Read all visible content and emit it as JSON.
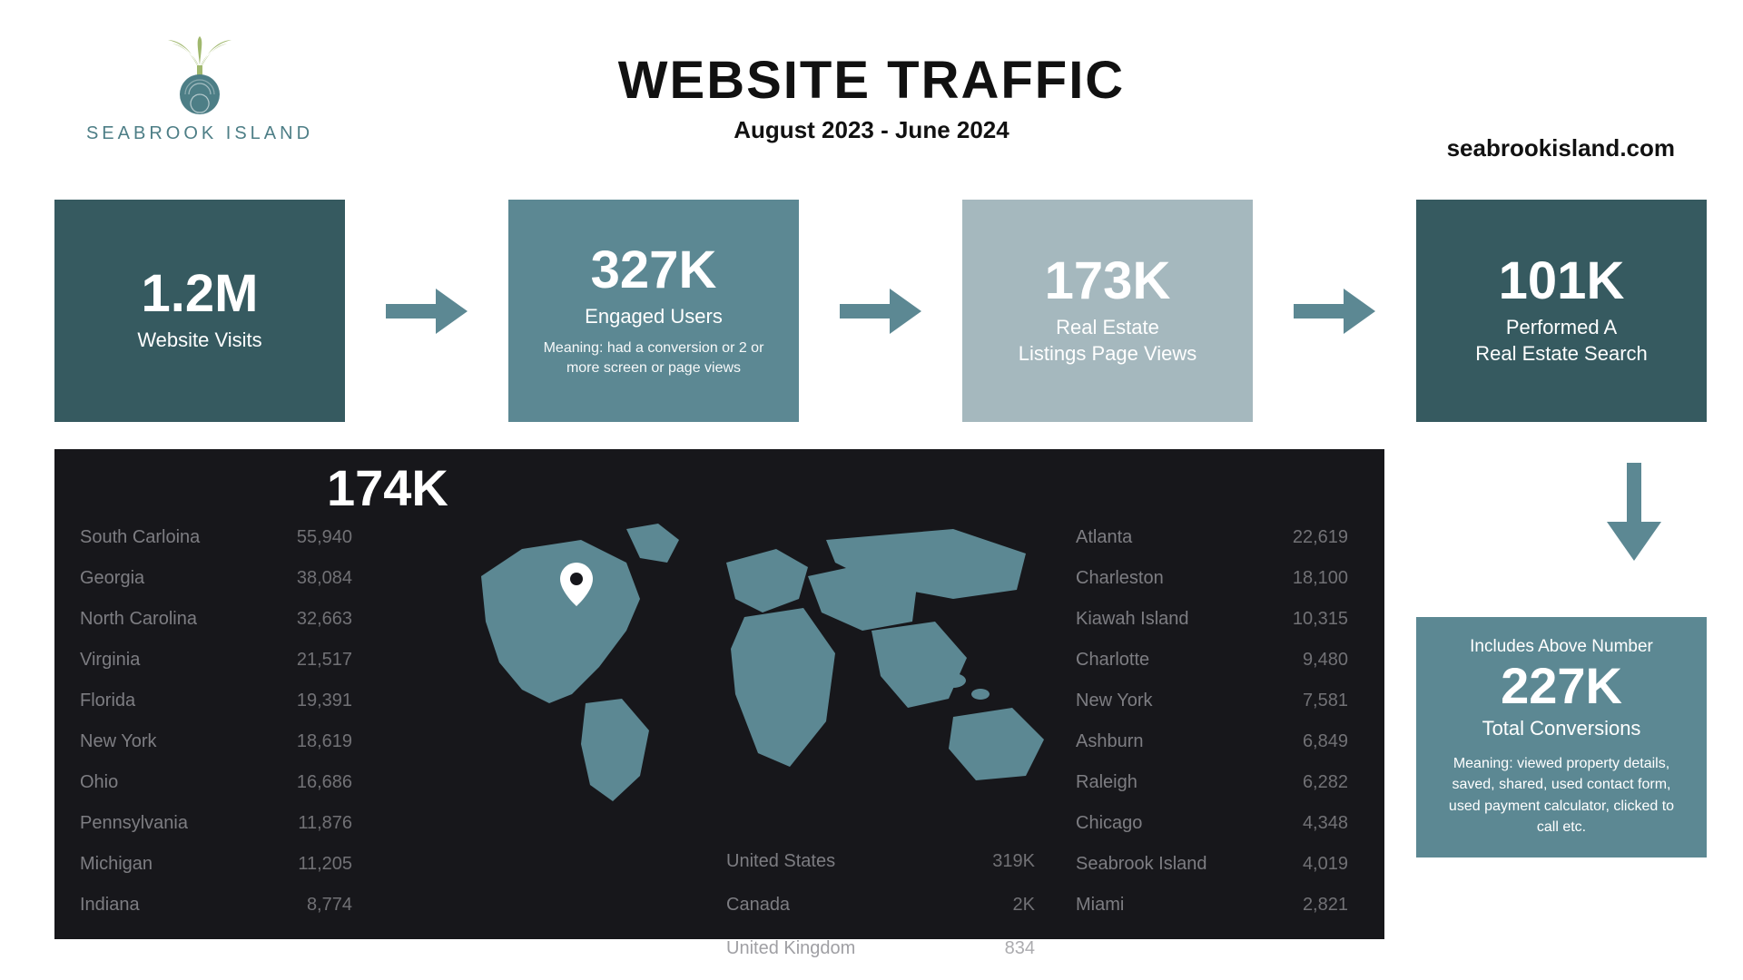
{
  "colors": {
    "dark_teal": "#365a60",
    "mid_teal": "#5c8893",
    "light_teal": "#a5b8be",
    "accent": "#5c8893",
    "near_black": "#17171b",
    "white": "#ffffff",
    "text_dark": "#111111",
    "geo_text": "#8f8f94",
    "logo_green": "#a0b86e",
    "logo_teal": "#4d7e86"
  },
  "typography": {
    "title_fontsize": 58,
    "subtitle_fontsize": 26,
    "card_number_fontsize": 58
  },
  "brand": {
    "name": "SEABROOK ISLAND",
    "url": "seabrookisland.com"
  },
  "header": {
    "title": "WEBSITE TRAFFIC",
    "subtitle": "August 2023 - June 2024"
  },
  "funnel": [
    {
      "value": "1.2M",
      "label": "Website Visits",
      "sub": "",
      "bg_key": "dark_teal"
    },
    {
      "value": "327K",
      "label": "Engaged Users",
      "sub": "Meaning: had a conversion or 2 or more screen or page views",
      "bg_key": "mid_teal"
    },
    {
      "value": "173K",
      "label": "Real Estate\nListings Page Views",
      "sub": "",
      "bg_key": "light_teal"
    },
    {
      "value": "101K",
      "label": "Performed A\nReal Estate Search",
      "sub": "",
      "bg_key": "dark_teal"
    }
  ],
  "geo": {
    "headline": "174K",
    "map_fill": "#5c8893",
    "pin_color": "#ffffff",
    "states": [
      {
        "name": "South Carloina",
        "value": "55,940"
      },
      {
        "name": "Georgia",
        "value": "38,084"
      },
      {
        "name": "North Carolina",
        "value": "32,663"
      },
      {
        "name": "Virginia",
        "value": "21,517"
      },
      {
        "name": "Florida",
        "value": "19,391"
      },
      {
        "name": "New York",
        "value": "18,619"
      },
      {
        "name": "Ohio",
        "value": "16,686"
      },
      {
        "name": "Pennsylvania",
        "value": "11,876"
      },
      {
        "name": "Michigan",
        "value": "11,205"
      },
      {
        "name": "Indiana",
        "value": "8,774"
      }
    ],
    "cities": [
      {
        "name": "Atlanta",
        "value": "22,619"
      },
      {
        "name": "Charleston",
        "value": "18,100"
      },
      {
        "name": "Kiawah Island",
        "value": "10,315"
      },
      {
        "name": "Charlotte",
        "value": "9,480"
      },
      {
        "name": "New York",
        "value": "7,581"
      },
      {
        "name": "Ashburn",
        "value": "6,849"
      },
      {
        "name": "Raleigh",
        "value": "6,282"
      },
      {
        "name": "Chicago",
        "value": "4,348"
      },
      {
        "name": "Seabrook Island",
        "value": "4,019"
      },
      {
        "name": "Miami",
        "value": "2,821"
      }
    ],
    "countries": [
      {
        "name": "United States",
        "value": "319K"
      },
      {
        "name": "Canada",
        "value": "2K"
      },
      {
        "name": "United Kingdom",
        "value": "834"
      }
    ]
  },
  "conversions": {
    "top": "Includes Above Number",
    "value": "227K",
    "label": "Total Conversions",
    "desc": "Meaning: viewed property details, saved, shared, used contact form, used payment calculator, clicked to call etc.",
    "bg_key": "mid_teal"
  }
}
